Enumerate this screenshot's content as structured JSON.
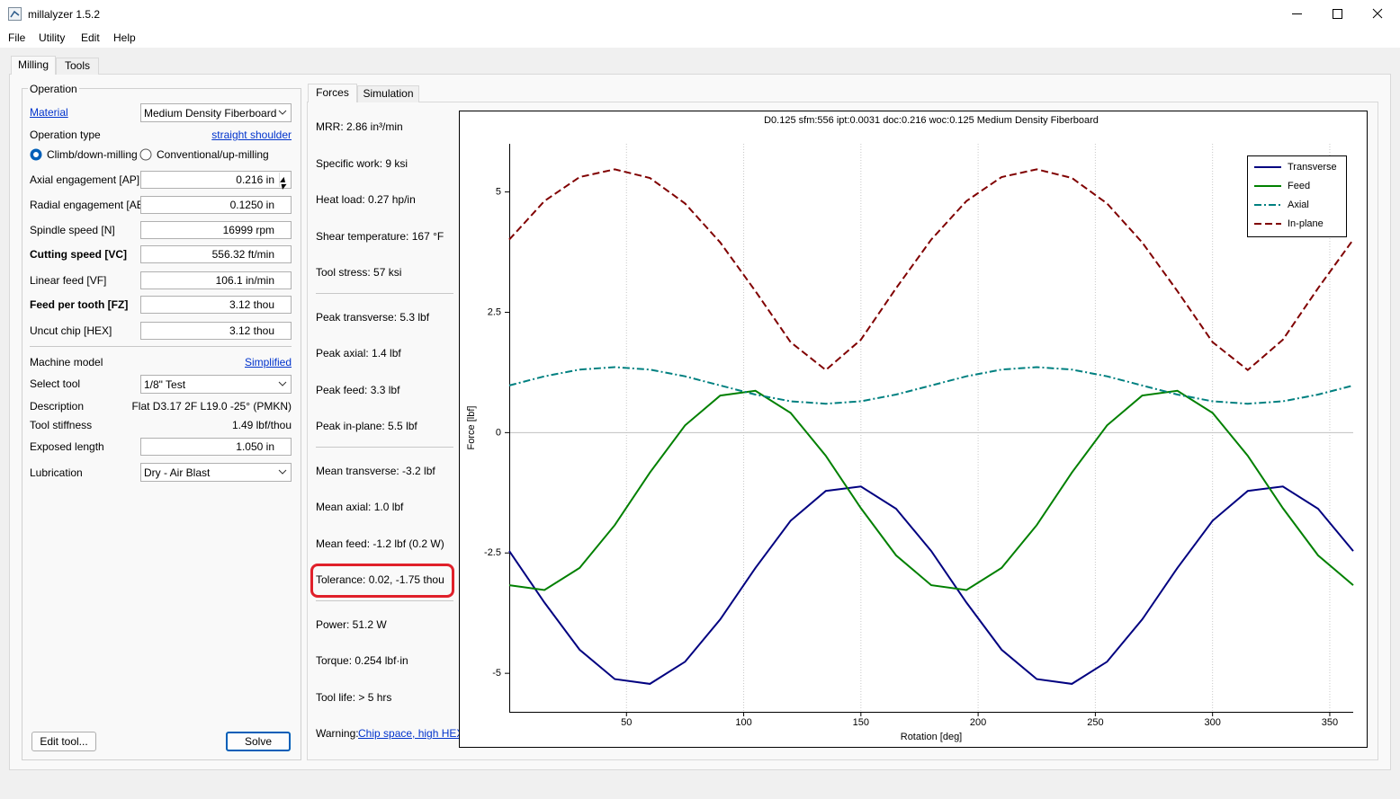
{
  "window": {
    "title": "millalyzer 1.5.2"
  },
  "menu": [
    "File",
    "Utility",
    "Edit",
    "Help"
  ],
  "tabs": [
    "Milling",
    "Tools"
  ],
  "operation": {
    "title": "Operation",
    "material": {
      "label": "Material",
      "value": "Medium Density Fiberboard"
    },
    "operation_type": {
      "label": "Operation type",
      "value": "straight shoulder"
    },
    "climb": "Climb/down-milling",
    "conventional": "Conventional/up-milling",
    "axial_engagement": {
      "label": "Axial engagement [AP]",
      "value": "0.216 in"
    },
    "radial_engagement": {
      "label": "Radial engagement [AE]",
      "value": "0.1250 in"
    },
    "spindle_speed": {
      "label": "Spindle speed [N]",
      "value": "16999 rpm"
    },
    "cutting_speed": {
      "label": "Cutting speed [VC]",
      "value": "556.32 ft/min"
    },
    "linear_feed": {
      "label": "Linear feed [VF]",
      "value": "106.1 in/min"
    },
    "feed_per_tooth": {
      "label": "Feed per tooth [FZ]",
      "value": "3.12 thou"
    },
    "uncut_chip": {
      "label": "Uncut chip [HEX]",
      "value": "3.12 thou"
    },
    "machine_model": {
      "label": "Machine model",
      "value": "Simplified"
    },
    "select_tool": {
      "label": "Select tool",
      "value": "1/8\" Test"
    },
    "description": {
      "label": "Description",
      "value": "Flat D3.17 2F L19.0 -25° (PMKN)"
    },
    "tool_stiffness": {
      "label": "Tool stiffness",
      "value": "1.49 lbf/thou"
    },
    "exposed_length": {
      "label": "Exposed length",
      "value": "1.050 in"
    },
    "lubrication": {
      "label": "Lubrication",
      "value": "Dry - Air Blast"
    }
  },
  "buttons": [
    "Edit tool...",
    "Solve"
  ],
  "result_tabs": [
    "Forces",
    "Simulation"
  ],
  "results": [
    "MRR: 2.86 in³/min",
    "Specific work: 9 ksi",
    "Heat load: 0.27 hp/in",
    "Shear temperature: 167 °F",
    "Tool stress: 57 ksi",
    "Peak transverse: 5.3 lbf",
    "Peak axial: 1.4 lbf",
    "Peak feed: 3.3 lbf",
    "Peak in-plane: 5.5 lbf",
    "Mean transverse: -3.2 lbf",
    "Mean axial: 1.0 lbf",
    "Mean feed: -1.2 lbf (0.2 W)",
    "Tolerance: 0.02, -1.75 thou",
    "Power: 51.2 W",
    "Torque: 0.254 lbf·in",
    "Tool life: > 5 hrs"
  ],
  "warning": {
    "label": "Warning:",
    "link": "Chip space, high HEX."
  },
  "chart_data": {
    "type": "line",
    "title": "D0.125 sfm:556 ipt:0.0031 doc:0.216 woc:0.125 Medium Density Fiberboard",
    "x_label": "Rotation [deg]",
    "y_label": "Force [lbf]",
    "x": [
      0,
      15,
      30,
      45,
      60,
      75,
      90,
      105,
      120,
      135,
      150,
      165,
      180,
      195,
      210,
      225,
      240,
      255,
      270,
      285,
      300,
      315,
      330,
      345,
      360
    ],
    "series": [
      {
        "name": "Transverse",
        "color": "#000080",
        "dash": "solid",
        "values": [
          -2.46,
          -3.53,
          -4.51,
          -5.12,
          -5.22,
          -4.76,
          -3.88,
          -2.81,
          -1.83,
          -1.21,
          -1.12,
          -1.58,
          -2.46,
          -3.53,
          -4.51,
          -5.12,
          -5.22,
          -4.76,
          -3.88,
          -2.81,
          -1.83,
          -1.21,
          -1.12,
          -1.58,
          -2.46
        ]
      },
      {
        "name": "Feed",
        "color": "#008000",
        "dash": "solid",
        "values": [
          -3.17,
          -3.27,
          -2.81,
          -1.92,
          -0.83,
          0.15,
          0.77,
          0.87,
          0.41,
          -0.48,
          -1.57,
          -2.55,
          -3.17,
          -3.27,
          -2.81,
          -1.92,
          -0.83,
          0.15,
          0.77,
          0.87,
          0.41,
          -0.48,
          -1.57,
          -2.55,
          -3.17
        ]
      },
      {
        "name": "Axial",
        "color": "#008080",
        "dash": "dashdot",
        "values": [
          0.98,
          1.17,
          1.31,
          1.36,
          1.31,
          1.17,
          0.98,
          0.79,
          0.65,
          0.6,
          0.65,
          0.79,
          0.98,
          1.17,
          1.31,
          1.36,
          1.31,
          1.17,
          0.98,
          0.79,
          0.65,
          0.6,
          0.65,
          0.79,
          0.98
        ]
      },
      {
        "name": "In-plane",
        "color": "#800000",
        "dash": "dashed",
        "values": [
          4.01,
          4.81,
          5.31,
          5.47,
          5.29,
          4.76,
          3.95,
          2.94,
          1.88,
          1.3,
          1.93,
          3.0,
          4.01,
          4.81,
          5.31,
          5.47,
          5.29,
          4.76,
          3.95,
          2.94,
          1.88,
          1.3,
          1.93,
          3.0,
          4.01
        ]
      }
    ],
    "xlim": [
      0,
      360
    ],
    "ylim": [
      -5.8,
      6.0
    ],
    "xticks": [
      50,
      100,
      150,
      200,
      250,
      300,
      350
    ],
    "yticks": [
      -5,
      -2.5,
      0,
      2.5,
      5
    ],
    "grid": true,
    "legend": "upper right"
  }
}
